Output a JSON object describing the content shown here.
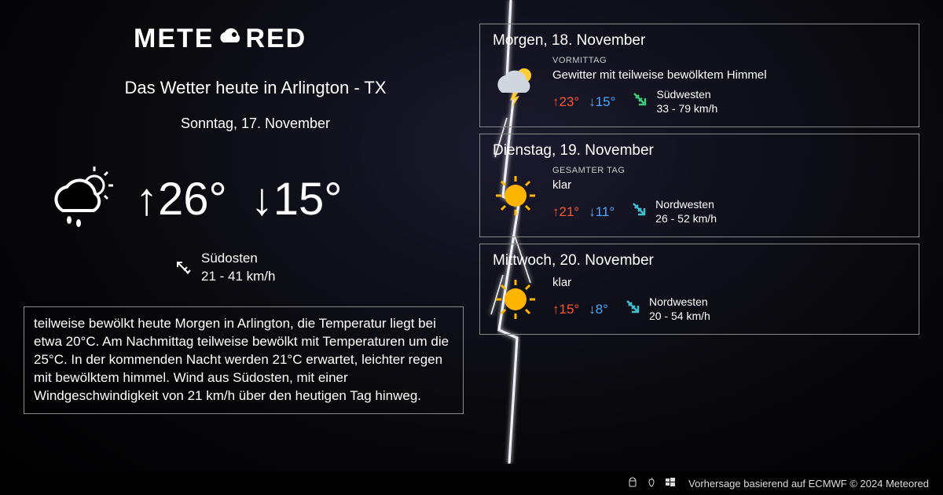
{
  "brand": {
    "name_pre": "METE",
    "name_post": "RED"
  },
  "header": {
    "title": "Das Wetter heute in Arlington - TX",
    "date": "Sonntag, 17. November"
  },
  "today": {
    "high": "26°",
    "low": "15°",
    "wind_dir": "Südosten",
    "wind_speed": "21 - 41 km/h"
  },
  "description": "teilweise bewölkt heute Morgen in Arlington, die Temperatur liegt bei etwa 20°C. Am Nachmittag teilweise bewölkt mit Temperaturen um die 25°C. In der kommenden Nacht werden 21°C erwartet, leichter regen mit bewölktem himmel. Wind aus Südosten, mit einer Windgeschwindigkeit von 21 km/h über den heutigen Tag hinweg.",
  "forecast": [
    {
      "date": "Morgen, 18. November",
      "period": "VORMITTAG",
      "condition": "Gewitter mit teilweise bewölktem Himmel",
      "high": "23°",
      "low": "15°",
      "wind_dir": "Südwesten",
      "wind_speed": "33 - 79 km/h",
      "icon": "storm",
      "wind_color": "#3fc97a"
    },
    {
      "date": "Dienstag, 19. November",
      "period": "GESAMTER TAG",
      "condition": "klar",
      "high": "21°",
      "low": "11°",
      "wind_dir": "Nordwesten",
      "wind_speed": "26 - 52 km/h",
      "icon": "sun",
      "wind_color": "#3fbfcf"
    },
    {
      "date": "Mittwoch, 20. November",
      "period": "",
      "condition": "klar",
      "high": "15°",
      "low": "8°",
      "wind_dir": "Nordwesten",
      "wind_speed": "20 - 54 km/h",
      "icon": "sun",
      "wind_color": "#3fbfcf"
    }
  ],
  "footer": {
    "attribution": "Vorhersage basierend auf ECMWF © 2024 Meteored"
  },
  "colors": {
    "high": "#ff5533",
    "low": "#4aa8ff",
    "border": "#888888",
    "text": "#ffffff"
  }
}
